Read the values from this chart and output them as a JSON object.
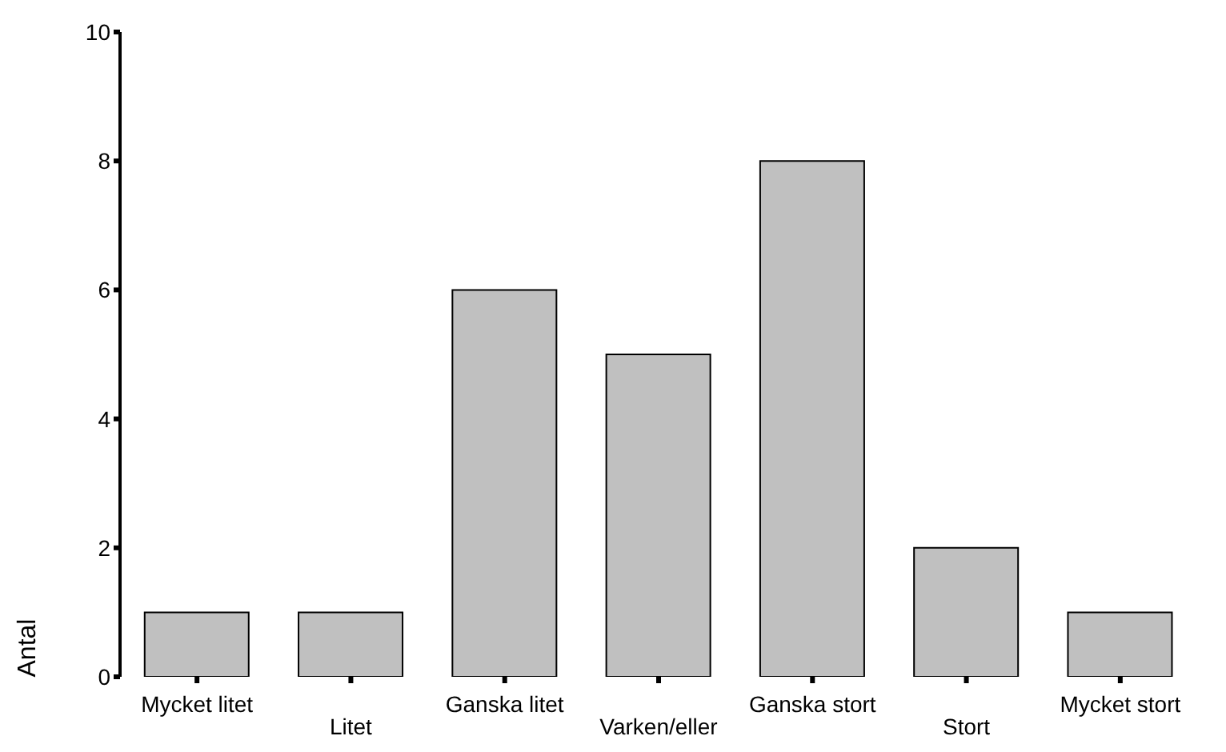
{
  "chart_data": {
    "type": "bar",
    "ylabel": "Antal",
    "categories": [
      "Mycket litet",
      "Litet",
      "Ganska litet",
      "Varken/eller",
      "Ganska stort",
      "Stort",
      "Mycket stort"
    ],
    "values": [
      1,
      1,
      6,
      5,
      8,
      2,
      1
    ],
    "color": "#c0c0c0",
    "ylim": [
      0,
      10
    ],
    "yticks": [
      0,
      2,
      4,
      6,
      8,
      10
    ],
    "grid": false,
    "legend": false
  }
}
